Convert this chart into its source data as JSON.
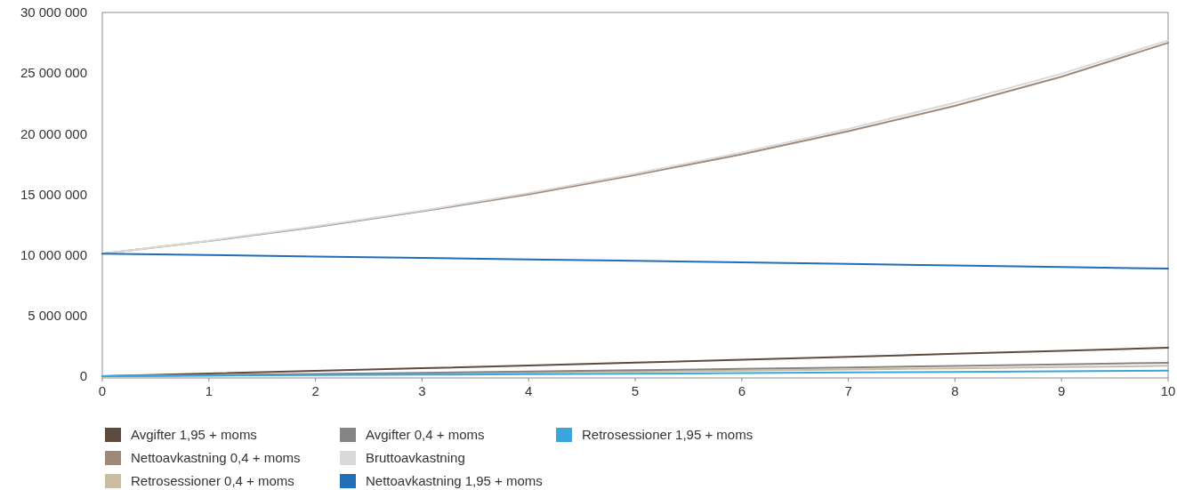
{
  "chart_data": {
    "type": "line",
    "x": [
      0,
      1,
      2,
      3,
      4,
      5,
      6,
      7,
      8,
      9,
      10
    ],
    "xlim": [
      0,
      10
    ],
    "xticks": [
      0,
      1,
      2,
      3,
      4,
      5,
      6,
      7,
      8,
      9,
      10
    ],
    "ylim": [
      -150000,
      30000000
    ],
    "yticks": [
      {
        "value": 0,
        "label": "0"
      },
      {
        "value": 5000000,
        "label": "5 000 000"
      },
      {
        "value": 10000000,
        "label": "10 000 000"
      },
      {
        "value": 15000000,
        "label": "15 000 000"
      },
      {
        "value": 20000000,
        "label": "20 000 000"
      },
      {
        "value": 25000000,
        "label": "25 000 000"
      },
      {
        "value": 30000000,
        "label": "30 000 000"
      }
    ],
    "grid": false,
    "legend": "bottom",
    "marker": "none",
    "line_style": "solid",
    "series": [
      {
        "name": "Avgifter 1,95 + moms",
        "color": "#5e4a3f",
        "values": [
          0,
          210000,
          430000,
          650000,
          880000,
          1110000,
          1350000,
          1590000,
          1840000,
          2090000,
          2350000
        ]
      },
      {
        "name": "Nettoavkastning 0,4 + moms",
        "color": "#a08878",
        "values": [
          10100000,
          11150000,
          12300000,
          13600000,
          15000000,
          16600000,
          18300000,
          20200000,
          22300000,
          24700000,
          27500000
        ]
      },
      {
        "name": "Retrosessioner 0,4 + moms",
        "color": "#cbbb9f",
        "values": [
          0,
          65000,
          135000,
          210000,
          290000,
          370000,
          455000,
          545000,
          640000,
          740000,
          850000
        ]
      },
      {
        "name": "Avgifter 0,4 + moms",
        "color": "#858585",
        "values": [
          0,
          90000,
          180000,
          280000,
          380000,
          490000,
          600000,
          720000,
          840000,
          970000,
          1100000
        ]
      },
      {
        "name": "Bruttoavkastning",
        "color": "#d9d9d9",
        "values": [
          10100000,
          11170000,
          12350000,
          13650000,
          15100000,
          16700000,
          18450000,
          20400000,
          22550000,
          24950000,
          27700000
        ]
      },
      {
        "name": "Nettoavkastning 1,95 + moms",
        "color": "#1f6fb8",
        "values": [
          10100000,
          10000000,
          9870000,
          9750000,
          9630000,
          9510000,
          9390000,
          9260000,
          9130000,
          9000000,
          8870000
        ]
      },
      {
        "name": "Retrosessioner 1,95 + moms",
        "color": "#3aa6dc",
        "values": [
          0,
          40000,
          80000,
          120000,
          160000,
          200000,
          250000,
          300000,
          350000,
          400000,
          450000
        ]
      }
    ]
  }
}
